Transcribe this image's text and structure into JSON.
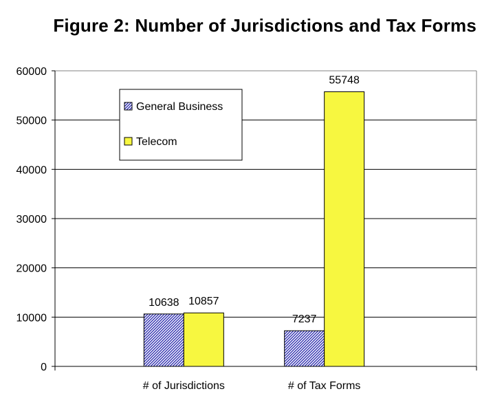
{
  "chart_data": {
    "type": "bar",
    "title": "Figure 2: Number of Jurisdictions and Tax Forms",
    "categories": [
      "# of Jurisdictions",
      "# of Tax Forms"
    ],
    "series": [
      {
        "name": "General Business",
        "values": [
          10638,
          7237
        ],
        "color": "#3b3bb8",
        "pattern": "diagonal-hatch"
      },
      {
        "name": "Telecom",
        "values": [
          10857,
          55748
        ],
        "color": "#f7f740",
        "pattern": "solid"
      }
    ],
    "ylim": [
      0,
      60000
    ],
    "yticks": [
      0,
      10000,
      20000,
      30000,
      40000,
      50000,
      60000
    ],
    "xlabel": "",
    "ylabel": "",
    "grid": true,
    "legend_position": "top-left",
    "data_labels": true
  }
}
